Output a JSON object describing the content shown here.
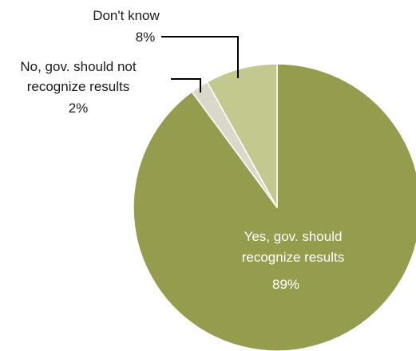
{
  "chart_data": {
    "type": "pie",
    "slices": [
      {
        "label": [
          "Yes, gov. should",
          "recognize results"
        ],
        "value": 89,
        "value_text": "89%",
        "color": "#969c4e"
      },
      {
        "label": [
          "No, gov. should not",
          "recognize results"
        ],
        "value": 2,
        "value_text": "2%",
        "color": "#dad9c9"
      },
      {
        "label": [
          "Don't know"
        ],
        "value": 8,
        "value_text": "8%",
        "color": "#c3c88e"
      }
    ],
    "start_angle": "12 o'clock",
    "direction": "clockwise",
    "legend": "none"
  }
}
